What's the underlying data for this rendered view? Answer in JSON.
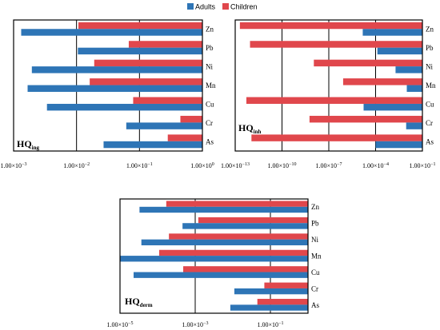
{
  "legend": {
    "position": "top-center",
    "items": [
      {
        "label": "Adults",
        "color": "#2e75b6"
      },
      {
        "label": "Children",
        "color": "#e0474c"
      }
    ]
  },
  "chart_data": [
    {
      "type": "bar",
      "orientation": "horizontal",
      "xscale": "log",
      "label_main": "HQ",
      "label_sub": "ing",
      "categories": [
        "Zn",
        "Pb",
        "Ni",
        "Mn",
        "Cu",
        "Cr",
        "As"
      ],
      "xlim": [
        0.001,
        1
      ],
      "xticks": [
        0.001,
        0.01,
        0.1,
        1
      ],
      "xtick_labels": [
        {
          "m": "1.00×10",
          "e": "−3"
        },
        {
          "m": "1.00×10",
          "e": "−2"
        },
        {
          "m": "1.00×10",
          "e": "−1"
        },
        {
          "m": "1.00×10",
          "e": "0"
        }
      ],
      "series": [
        {
          "name": "Children",
          "color": "#e0474c",
          "values": [
            0.0107,
            0.0676,
            0.0191,
            0.0162,
            0.0794,
            0.4467,
            0.2818
          ]
        },
        {
          "name": "Adults",
          "color": "#2e75b6",
          "values": [
            0.00132,
            0.0105,
            0.00195,
            0.00167,
            0.00339,
            0.0617,
            0.0269
          ]
        }
      ]
    },
    {
      "type": "bar",
      "orientation": "horizontal",
      "xscale": "log",
      "label_main": "HQ",
      "label_sub": "inh",
      "categories": [
        "Zn",
        "Pb",
        "Ni",
        "Mn",
        "Cu",
        "Cr",
        "As"
      ],
      "xlim": [
        1e-13,
        0.1
      ],
      "xticks": [
        1e-13,
        1e-10,
        1e-07,
        0.0001,
        0.1
      ],
      "xtick_labels": [
        {
          "m": "1.00×10",
          "e": "−13"
        },
        {
          "m": "1.00×10",
          "e": "−10"
        },
        {
          "m": "1.00×10",
          "e": "−7"
        },
        {
          "m": "1.00×10",
          "e": "−4"
        },
        {
          "m": "1.00×10",
          "e": "−1"
        }
      ],
      "series": [
        {
          "name": "Children",
          "color": "#e0474c",
          "values": [
            2e-13,
            8.9e-13,
            1.1e-08,
            8.3e-07,
            5.2e-13,
            5.8e-09,
            1.1e-12
          ]
        },
        {
          "name": "Adults",
          "color": "#2e75b6",
          "values": [
            1.5e-05,
            0.00013,
            0.0019,
            0.01,
            1.7e-05,
            0.0091,
            0.0001
          ]
        }
      ]
    },
    {
      "type": "bar",
      "orientation": "horizontal",
      "xscale": "log",
      "label_main": "HQ",
      "label_sub": "derm",
      "categories": [
        "Zn",
        "Pb",
        "Ni",
        "Mn",
        "Cu",
        "Cr",
        "As"
      ],
      "xlim": [
        1e-05,
        1
      ],
      "xticks": [
        1e-05,
        0.001,
        0.1
      ],
      "xtick_labels": [
        {
          "m": "1.00×10",
          "e": "−5"
        },
        {
          "m": "1.00×10",
          "e": "−3"
        },
        {
          "m": "1.00×10",
          "e": "−1"
        }
      ],
      "series": [
        {
          "name": "Children",
          "color": "#e0474c",
          "values": [
            0.00017,
            0.00121,
            0.0002,
            0.00011,
            0.00048,
            0.069,
            0.045
          ]
        },
        {
          "name": "Adults",
          "color": "#2e75b6",
          "values": [
            3.3e-05,
            0.00046,
            3.7e-05,
            1e-05,
            2.3e-05,
            0.011,
            0.0086
          ]
        }
      ]
    }
  ]
}
